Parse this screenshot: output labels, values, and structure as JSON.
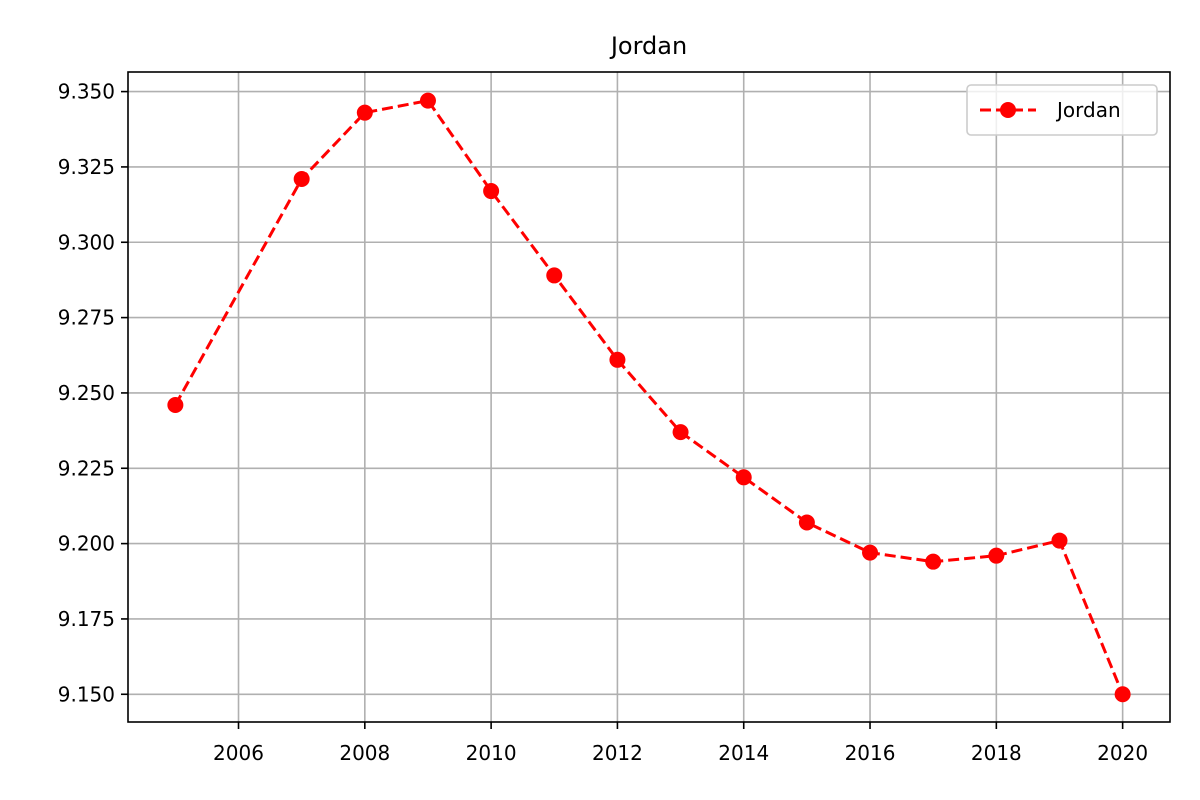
{
  "chart_data": {
    "type": "line",
    "title": "Jordan",
    "xlabel": "",
    "ylabel": "",
    "xlim": [
      2004.25,
      2020.75
    ],
    "ylim": [
      9.1408,
      9.3565
    ],
    "x_ticks": [
      2006,
      2008,
      2010,
      2012,
      2014,
      2016,
      2018,
      2020
    ],
    "x_tick_labels": [
      "2006",
      "2008",
      "2010",
      "2012",
      "2014",
      "2016",
      "2018",
      "2020"
    ],
    "y_ticks": [
      9.15,
      9.175,
      9.2,
      9.225,
      9.25,
      9.275,
      9.3,
      9.325,
      9.35
    ],
    "y_tick_labels": [
      "9.150",
      "9.175",
      "9.200",
      "9.225",
      "9.250",
      "9.275",
      "9.300",
      "9.325",
      "9.350"
    ],
    "grid": true,
    "legend_position": "top-right",
    "x": [
      2005,
      2007,
      2008,
      2009,
      2010,
      2011,
      2012,
      2013,
      2014,
      2015,
      2016,
      2017,
      2018,
      2019,
      2020
    ],
    "series": [
      {
        "name": "Jordan",
        "color": "#ff0000",
        "line_style": "dashed",
        "marker": "circle",
        "values": [
          9.246,
          9.321,
          9.343,
          9.347,
          9.317,
          9.289,
          9.261,
          9.237,
          9.222,
          9.207,
          9.197,
          9.194,
          9.196,
          9.201,
          9.15
        ]
      }
    ]
  }
}
